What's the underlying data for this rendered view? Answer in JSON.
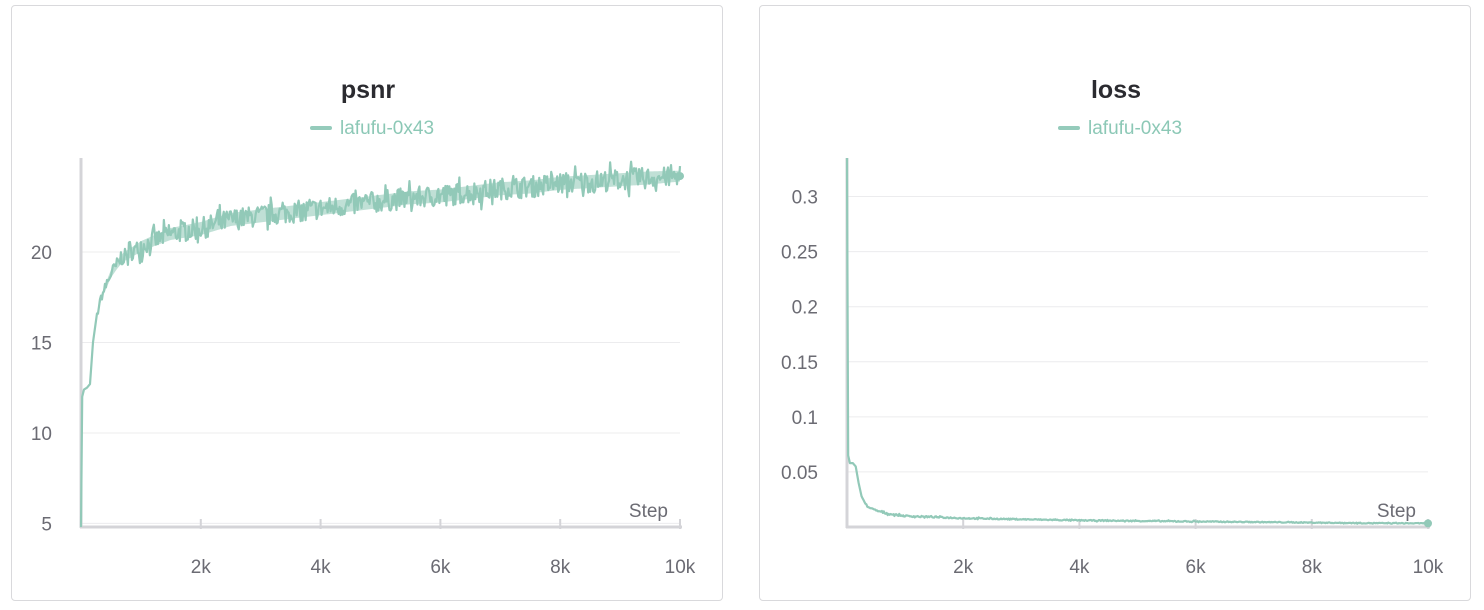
{
  "chart_data": [
    {
      "id": "psnr",
      "type": "line",
      "title": "psnr",
      "xlabel": "Step",
      "ylabel": "",
      "xlim": [
        0,
        10000
      ],
      "ylim": [
        4.8,
        25.2
      ],
      "x_ticks": [
        2000,
        4000,
        6000,
        8000,
        10000
      ],
      "x_tick_labels": [
        "2k",
        "4k",
        "6k",
        "8k",
        "10k"
      ],
      "y_ticks": [
        5,
        10,
        15,
        20
      ],
      "y_tick_labels": [
        "5",
        "10",
        "15",
        "20"
      ],
      "grid": true,
      "legend": "top-center",
      "series": [
        {
          "name": "lafufu-0x43",
          "color": "#92c9b8",
          "x": [
            0,
            20,
            50,
            100,
            150,
            200,
            250,
            300,
            350,
            400,
            500,
            600,
            700,
            800,
            900,
            1000,
            1200,
            1500,
            2000,
            2500,
            3000,
            3500,
            4000,
            4500,
            5000,
            5500,
            6000,
            6500,
            7000,
            7500,
            8000,
            8500,
            9000,
            9500,
            10000
          ],
          "values": [
            4.8,
            12.0,
            12.4,
            12.5,
            12.7,
            15.0,
            16.2,
            17.0,
            17.6,
            18.0,
            18.8,
            19.3,
            19.7,
            19.9,
            20.1,
            20.3,
            20.6,
            21.0,
            21.3,
            21.8,
            22.0,
            22.2,
            22.4,
            22.6,
            22.8,
            23.0,
            23.1,
            23.3,
            23.5,
            23.6,
            23.8,
            23.9,
            24.0,
            24.1,
            24.2
          ],
          "noise": [
            0,
            0.1,
            0.1,
            0.1,
            0.1,
            0.15,
            0.2,
            0.2,
            0.25,
            0.3,
            0.35,
            0.4,
            0.4,
            0.45,
            0.45,
            0.5,
            0.5,
            0.55,
            0.6,
            0.6,
            0.6,
            0.6,
            0.6,
            0.6,
            0.6,
            0.6,
            0.6,
            0.6,
            0.6,
            0.6,
            0.6,
            0.6,
            0.6,
            0.6,
            0.5
          ]
        }
      ]
    },
    {
      "id": "loss",
      "type": "line",
      "title": "loss",
      "xlabel": "Step",
      "ylabel": "",
      "xlim": [
        0,
        10000
      ],
      "ylim": [
        0,
        0.335
      ],
      "x_ticks": [
        2000,
        4000,
        6000,
        8000,
        10000
      ],
      "x_tick_labels": [
        "2k",
        "4k",
        "6k",
        "8k",
        "10k"
      ],
      "y_ticks": [
        0.05,
        0.1,
        0.15,
        0.2,
        0.25,
        0.3
      ],
      "y_tick_labels": [
        "0.05",
        "0.1",
        "0.15",
        "0.2",
        "0.25",
        "0.3"
      ],
      "grid": true,
      "legend": "top-center",
      "series": [
        {
          "name": "lafufu-0x43",
          "color": "#92c9b8",
          "x": [
            0,
            20,
            50,
            100,
            150,
            200,
            250,
            300,
            400,
            500,
            700,
            1000,
            1500,
            2000,
            3000,
            4000,
            5000,
            6000,
            7000,
            8000,
            9000,
            10000
          ],
          "values": [
            0.335,
            0.065,
            0.058,
            0.058,
            0.055,
            0.04,
            0.028,
            0.022,
            0.017,
            0.015,
            0.012,
            0.01,
            0.009,
            0.008,
            0.007,
            0.006,
            0.0055,
            0.005,
            0.0045,
            0.004,
            0.0035,
            0.0033
          ],
          "noise": [
            0,
            0.001,
            0.001,
            0.001,
            0.001,
            0.001,
            0.001,
            0.001,
            0.0008,
            0.0008,
            0.0007,
            0.0007,
            0.0006,
            0.0006,
            0.0005,
            0.0005,
            0.0005,
            0.0005,
            0.0004,
            0.0004,
            0.0004,
            0.0003
          ]
        }
      ]
    }
  ]
}
